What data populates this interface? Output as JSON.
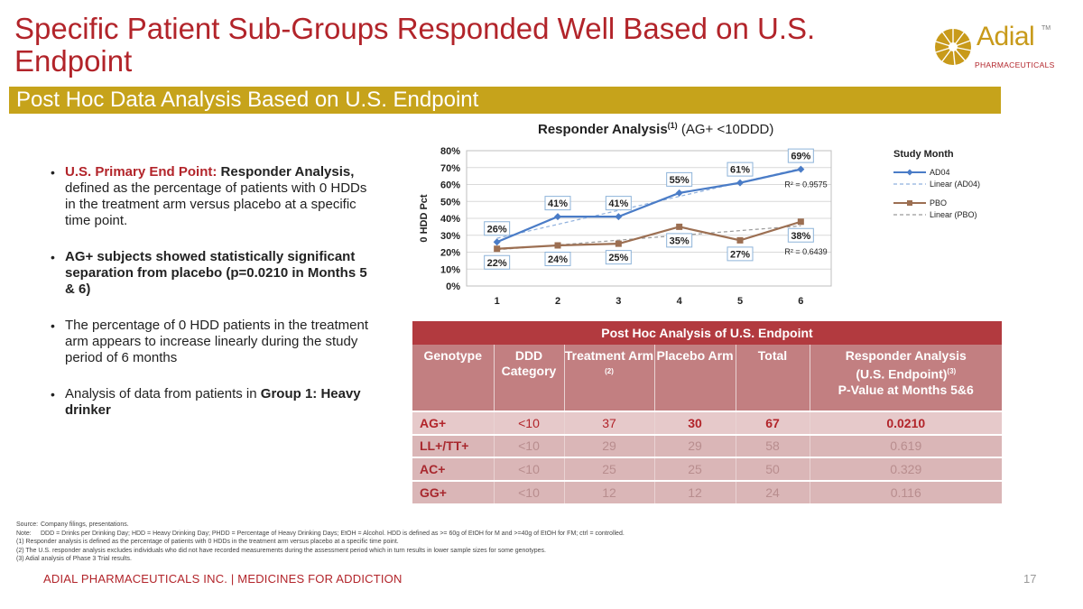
{
  "title": "Specific Patient Sub-Groups Responded Well Based on U.S. Endpoint",
  "logo": {
    "name": "Adial",
    "tm": "TM",
    "sub": "PHARMACEUTICALS"
  },
  "banner": "Post Hoc Data Analysis Based on U.S. Endpoint",
  "bullets": {
    "b1_label": "U.S. Primary End Point:",
    "b1_bold": "Responder Analysis,",
    "b1_text": "defined as the percentage of patients with 0 HDDs in the treatment arm versus placebo at a specific time point.",
    "b2_text": "AG+ subjects showed statistically significant separation from placebo (p=0.0210 in Months 5 & 6)",
    "b3_text": "The percentage of 0 HDD patients in the treatment arm appears to increase linearly during the study period of 6 months",
    "b4_text": "Analysis of data from patients in",
    "b4_bold": "Group 1: Heavy drinker"
  },
  "chart_title": {
    "main": "Responder Analysis",
    "sup": "(1)",
    "rest": "(AG+ <10DDD)"
  },
  "chart_data": {
    "type": "line",
    "x": [
      1,
      2,
      3,
      4,
      5,
      6
    ],
    "ylabel": "0 HDD Pct",
    "ylim": [
      0,
      80
    ],
    "yticks": [
      "0%",
      "10%",
      "20%",
      "30%",
      "40%",
      "50%",
      "60%",
      "70%",
      "80%"
    ],
    "legend_title": "Study Month",
    "series": [
      {
        "name": "AD04",
        "values": [
          26,
          41,
          41,
          55,
          61,
          69
        ],
        "labels": [
          "26%",
          "41%",
          "41%",
          "55%",
          "61%",
          "69%"
        ],
        "color": "#4a7cc7",
        "marker": "diamond"
      },
      {
        "name": "PBO",
        "values": [
          22,
          24,
          25,
          35,
          27,
          38
        ],
        "labels": [
          "22%",
          "24%",
          "25%",
          "35%",
          "27%",
          "38%"
        ],
        "color": "#9c6f52",
        "marker": "square"
      }
    ],
    "trendlines": [
      {
        "name": "Linear (AD04)",
        "r2": "R² = 0.9575",
        "color": "#8fb0dd"
      },
      {
        "name": "Linear (PBO)",
        "r2": "R² = 0.6439",
        "color": "#9a9a9a"
      }
    ],
    "grid": true,
    "legend_position": "right"
  },
  "table": {
    "title": "Post Hoc Analysis of U.S. Endpoint",
    "headers": {
      "genotype": "Genotype",
      "ddd": "DDD Category",
      "treat": "Treatment Arm",
      "treat_sup": "(2)",
      "placebo": "Placebo Arm",
      "total": "Total",
      "resp1": "Responder Analysis",
      "resp2": "(U.S. Endpoint)",
      "resp_sup": "(3)",
      "resp3": "P-Value at Months 5&6"
    },
    "rows": [
      {
        "genotype": "AG+",
        "ddd": "<10",
        "treat": "37",
        "placebo": "30",
        "total": "67",
        "p": "0.0210"
      },
      {
        "genotype": "LL+/TT+",
        "ddd": "<10",
        "treat": "29",
        "placebo": "29",
        "total": "58",
        "p": "0.619"
      },
      {
        "genotype": "AC+",
        "ddd": "<10",
        "treat": "25",
        "placebo": "25",
        "total": "50",
        "p": "0.329"
      },
      {
        "genotype": "GG+",
        "ddd": "<10",
        "treat": "12",
        "placebo": "12",
        "total": "24",
        "p": "0.116"
      }
    ]
  },
  "notes": {
    "source_label": "Source:",
    "source": "Company filings, presentations.",
    "note_label": "Note:",
    "note": "DDD = Drinks per Drinking Day; HDD = Heavy Drinking Day; PHDD = Percentage of Heavy Drinking Days; EtOH = Alcohol. HDD is defined as >= 60g of EtOH for M and >=40g of EtOH for FM; ctrl = controlled.",
    "n1": "(1) Responder analysis is defined as the percentage of patients with 0 HDDs in the treatment arm versus placebo at a specific time point.",
    "n2": "(2) The U.S. responder analysis excludes individuals who did  not have recorded measurements during the assessment period which in turn results in lower sample sizes for some genotypes.",
    "n3": "(3) Adial analysis of Phase 3 Trial results."
  },
  "footer": "ADIAL PHARMACEUTICALS INC.  |  MEDICINES FOR ADDICTION",
  "page_number": "17"
}
